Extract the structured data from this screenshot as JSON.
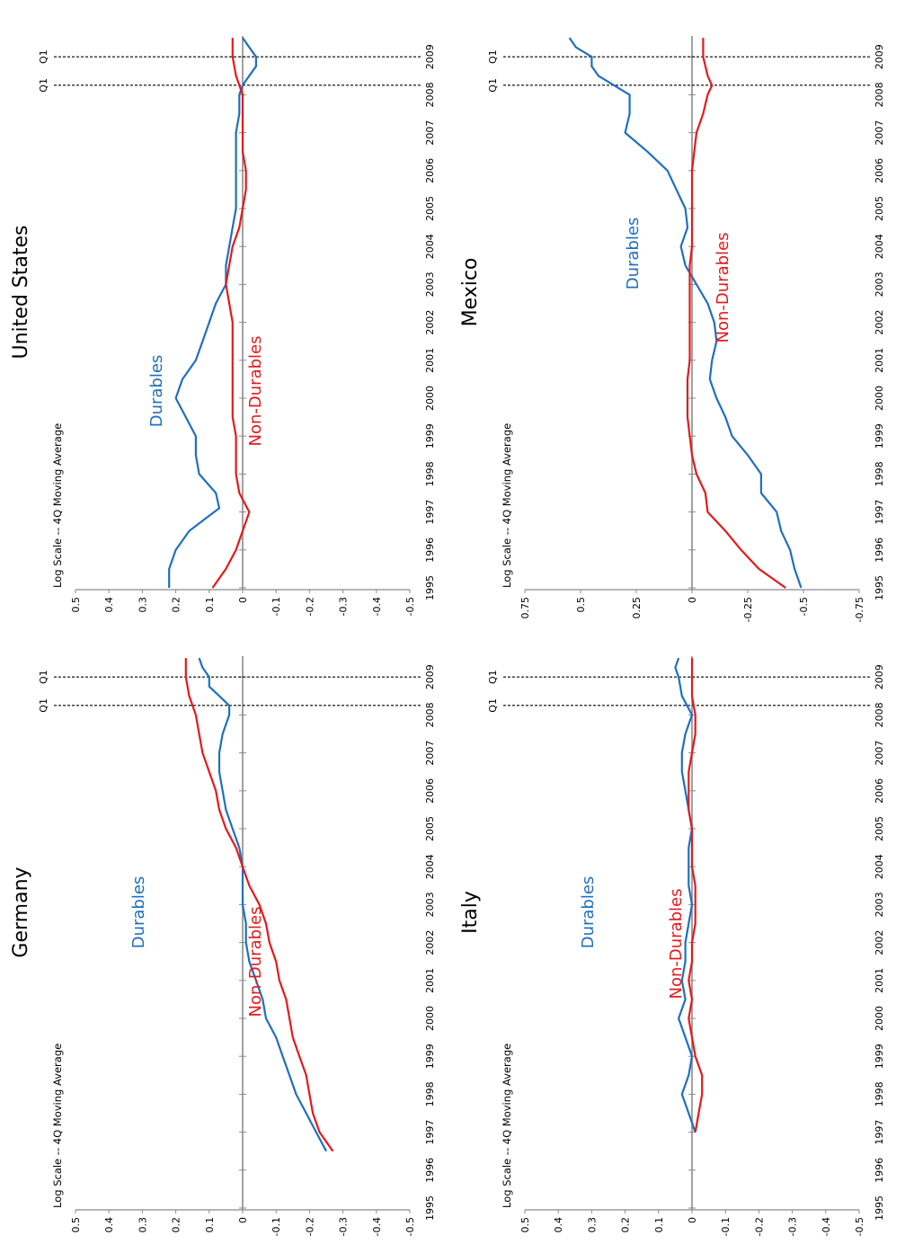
{
  "colors": {
    "durables": "#1f6fbf",
    "non_durables": "#e31a1c",
    "axis": "#8a8a8a",
    "dash": "#000000",
    "text": "#000000"
  },
  "chart_data": [
    {
      "type": "line",
      "title": "United States",
      "scale_note": "Log Scale  -- 4Q Moving Average",
      "ylim": [
        -0.5,
        0.5
      ],
      "y_ticks": [
        0.5,
        0.4,
        0.3,
        0.2,
        0.1,
        0,
        -0.1,
        -0.2,
        -0.3,
        -0.4,
        -0.5
      ],
      "y_tick_labels": [
        "0.5",
        "0.4",
        "0.3",
        "0.2",
        "0.1",
        "0",
        "-0.1",
        "-0.2",
        "-0.3",
        "-0.4",
        "-0.5"
      ],
      "x_ticks": [
        "1995",
        "1996",
        "1997",
        "1998",
        "1999",
        "2000",
        "2001",
        "2002",
        "2003",
        "2004",
        "2005",
        "2006",
        "2007",
        "2008",
        "2009"
      ],
      "markers": [
        {
          "label": "Q1",
          "x": 2008.25
        },
        {
          "label": "Q1",
          "x": 2009.0
        }
      ],
      "series": [
        {
          "name": "Durables",
          "x": [
            1995.0,
            1995.5,
            1996.0,
            1996.5,
            1996.9,
            1997.1,
            1997.5,
            1998.0,
            1998.5,
            1999.0,
            1999.5,
            2000.0,
            2000.5,
            2001.0,
            2001.5,
            2002.0,
            2002.5,
            2003.0,
            2003.5,
            2004.0,
            2004.5,
            2005.0,
            2005.5,
            2006.0,
            2006.5,
            2007.0,
            2007.5,
            2008.0,
            2008.25,
            2008.5,
            2008.75,
            2009.0,
            2009.25,
            2009.5
          ],
          "y": [
            0.22,
            0.22,
            0.2,
            0.16,
            0.1,
            0.07,
            0.08,
            0.13,
            0.14,
            0.14,
            0.17,
            0.2,
            0.18,
            0.14,
            0.12,
            0.1,
            0.08,
            0.05,
            0.05,
            0.04,
            0.03,
            0.02,
            0.02,
            0.02,
            0.02,
            0.02,
            0.01,
            0.01,
            0.0,
            -0.02,
            -0.04,
            -0.04,
            -0.02,
            0.0
          ]
        },
        {
          "name": "Non-Durables",
          "x": [
            1995.0,
            1995.5,
            1996.0,
            1996.5,
            1997.0,
            1997.5,
            1998.0,
            1998.5,
            1999.0,
            1999.5,
            2000.0,
            2000.5,
            2001.0,
            2001.5,
            2002.0,
            2002.5,
            2003.0,
            2003.5,
            2004.0,
            2004.5,
            2005.0,
            2005.5,
            2006.0,
            2006.5,
            2007.0,
            2007.5,
            2008.0,
            2008.5,
            2009.0,
            2009.5
          ],
          "y": [
            0.09,
            0.05,
            0.02,
            0.0,
            -0.02,
            0.01,
            0.02,
            0.02,
            0.02,
            0.03,
            0.03,
            0.03,
            0.03,
            0.03,
            0.03,
            0.04,
            0.05,
            0.04,
            0.03,
            0.01,
            0.0,
            -0.01,
            -0.01,
            0.0,
            0.0,
            0.0,
            0.0,
            0.02,
            0.03,
            0.03
          ]
        }
      ]
    },
    {
      "type": "line",
      "title": "Mexico",
      "scale_note": "Log Scale  -- 4Q Moving Average",
      "ylim": [
        -0.75,
        0.75
      ],
      "y_ticks": [
        0.75,
        0.5,
        0.25,
        0,
        -0.25,
        -0.5,
        -0.75
      ],
      "y_tick_labels": [
        "0.75",
        "0.5",
        "0.25",
        "0",
        "-0.25",
        "-0.5",
        "-0.75"
      ],
      "x_ticks": [
        "1995",
        "1996",
        "1997",
        "1998",
        "1999",
        "2000",
        "2001",
        "2002",
        "2003",
        "2004",
        "2005",
        "2006",
        "2007",
        "2008",
        "2009"
      ],
      "markers": [
        {
          "label": "Q1",
          "x": 2008.25
        },
        {
          "label": "Q1",
          "x": 2009.0
        }
      ],
      "series": [
        {
          "name": "Durables",
          "x": [
            1995.0,
            1995.5,
            1996.0,
            1996.5,
            1997.0,
            1997.5,
            1998.0,
            1998.5,
            1999.0,
            1999.5,
            2000.0,
            2000.5,
            2001.0,
            2001.5,
            2002.0,
            2002.5,
            2003.0,
            2003.5,
            2004.0,
            2004.5,
            2005.0,
            2005.5,
            2006.0,
            2006.5,
            2007.0,
            2007.5,
            2008.0,
            2008.25,
            2008.5,
            2008.75,
            2009.0,
            2009.25,
            2009.5
          ],
          "y": [
            -0.49,
            -0.46,
            -0.44,
            -0.4,
            -0.38,
            -0.31,
            -0.31,
            -0.25,
            -0.18,
            -0.15,
            -0.11,
            -0.08,
            -0.09,
            -0.11,
            -0.1,
            -0.07,
            -0.02,
            0.03,
            0.05,
            0.02,
            0.03,
            0.07,
            0.11,
            0.2,
            0.3,
            0.28,
            0.28,
            0.35,
            0.42,
            0.45,
            0.45,
            0.52,
            0.55
          ]
        },
        {
          "name": "Non-Durables",
          "x": [
            1995.0,
            1995.5,
            1996.0,
            1996.5,
            1997.0,
            1997.5,
            1998.0,
            1998.5,
            1999.0,
            1999.5,
            2000.0,
            2000.5,
            2001.0,
            2001.5,
            2002.0,
            2002.5,
            2003.0,
            2003.5,
            2004.0,
            2004.5,
            2005.0,
            2005.5,
            2006.0,
            2006.5,
            2007.0,
            2007.5,
            2008.0,
            2008.25,
            2008.5,
            2009.0,
            2009.5
          ],
          "y": [
            -0.42,
            -0.3,
            -0.22,
            -0.15,
            -0.07,
            -0.06,
            -0.02,
            0.0,
            0.01,
            0.02,
            0.02,
            0.02,
            0.01,
            0.01,
            0.01,
            0.01,
            0.01,
            0.01,
            0.0,
            0.0,
            0.0,
            0.0,
            0.0,
            -0.01,
            -0.02,
            -0.05,
            -0.07,
            -0.09,
            -0.07,
            -0.05,
            -0.05
          ]
        }
      ]
    },
    {
      "type": "line",
      "title": "Germany",
      "scale_note": "Log Scale  -- 4Q Moving Average",
      "ylim": [
        -0.5,
        0.5
      ],
      "y_ticks": [
        0.5,
        0.4,
        0.3,
        0.2,
        0.1,
        0,
        -0.1,
        -0.2,
        -0.3,
        -0.4,
        -0.5
      ],
      "y_tick_labels": [
        "0.5",
        "0.4",
        "0.3",
        "0.2",
        "0.1",
        "0",
        "-0.1",
        "-0.2",
        "-0.3",
        "-0.4",
        "-0.5"
      ],
      "x_ticks": [
        "1995",
        "1996",
        "1997",
        "1998",
        "1999",
        "2000",
        "2001",
        "2002",
        "2003",
        "2004",
        "2005",
        "2006",
        "2007",
        "2008",
        "2009"
      ],
      "markers": [
        {
          "label": "Q1",
          "x": 2008.25
        },
        {
          "label": "Q1",
          "x": 2009.0
        }
      ],
      "series": [
        {
          "name": "Durables",
          "x": [
            1996.5,
            1997.0,
            1997.5,
            1998.0,
            1998.5,
            1999.0,
            1999.5,
            2000.0,
            2000.5,
            2001.0,
            2001.5,
            2002.0,
            2002.5,
            2003.0,
            2003.5,
            2004.0,
            2004.5,
            2005.0,
            2005.5,
            2006.0,
            2006.5,
            2007.0,
            2007.5,
            2008.0,
            2008.25,
            2008.5,
            2008.75,
            2009.0,
            2009.25,
            2009.5
          ],
          "y": [
            -0.25,
            -0.22,
            -0.19,
            -0.16,
            -0.14,
            -0.12,
            -0.1,
            -0.07,
            -0.06,
            -0.04,
            -0.02,
            -0.01,
            -0.01,
            0.0,
            0.0,
            0.0,
            0.01,
            0.03,
            0.05,
            0.06,
            0.07,
            0.07,
            0.06,
            0.04,
            0.04,
            0.07,
            0.1,
            0.1,
            0.12,
            0.13
          ]
        },
        {
          "name": "Non-Durables",
          "x": [
            1996.5,
            1997.0,
            1997.5,
            1998.0,
            1998.5,
            1999.0,
            1999.5,
            2000.0,
            2000.5,
            2001.0,
            2001.5,
            2002.0,
            2002.5,
            2003.0,
            2003.5,
            2004.0,
            2004.5,
            2005.0,
            2005.5,
            2006.0,
            2006.5,
            2007.0,
            2007.5,
            2008.0,
            2008.5,
            2009.0,
            2009.5
          ],
          "y": [
            -0.27,
            -0.23,
            -0.21,
            -0.2,
            -0.19,
            -0.17,
            -0.15,
            -0.14,
            -0.13,
            -0.11,
            -0.1,
            -0.08,
            -0.07,
            -0.05,
            -0.02,
            0.0,
            0.02,
            0.05,
            0.07,
            0.08,
            0.1,
            0.12,
            0.13,
            0.14,
            0.16,
            0.17,
            0.17
          ]
        }
      ]
    },
    {
      "type": "line",
      "title": "Italy",
      "scale_note": "Log Scale  -- 4Q Moving Average",
      "ylim": [
        -0.5,
        0.5
      ],
      "y_ticks": [
        0.5,
        0.4,
        0.3,
        0.2,
        0.1,
        0,
        -0.1,
        -0.2,
        -0.3,
        -0.4,
        -0.5
      ],
      "y_tick_labels": [
        "0.5",
        "0.4",
        "0.3",
        "0.2",
        "0.1",
        "0",
        "-0.1",
        "-0.2",
        "-0.3",
        "-0.4",
        "-0.5"
      ],
      "x_ticks": [
        "1995",
        "1996",
        "1997",
        "1998",
        "1999",
        "2000",
        "2001",
        "2002",
        "2003",
        "2004",
        "2005",
        "2006",
        "2007",
        "2008",
        "2009"
      ],
      "markers": [
        {
          "label": "Q1",
          "x": 2008.25
        },
        {
          "label": "Q1",
          "x": 2009.0
        }
      ],
      "series": [
        {
          "name": "Durables",
          "x": [
            1997.0,
            1997.5,
            1998.0,
            1998.5,
            1999.0,
            1999.5,
            2000.0,
            2000.5,
            2001.0,
            2001.5,
            2002.0,
            2002.5,
            2003.0,
            2003.5,
            2004.0,
            2004.5,
            2005.0,
            2005.5,
            2006.0,
            2006.5,
            2007.0,
            2007.5,
            2008.0,
            2008.5,
            2009.0,
            2009.25,
            2009.5
          ],
          "y": [
            -0.01,
            0.01,
            0.03,
            0.01,
            0.0,
            0.02,
            0.04,
            0.02,
            0.03,
            0.02,
            0.02,
            0.01,
            0.0,
            0.01,
            0.01,
            0.01,
            0.0,
            0.01,
            0.02,
            0.03,
            0.03,
            0.02,
            0.0,
            0.03,
            0.04,
            0.05,
            0.04
          ]
        },
        {
          "name": "Non-Durables",
          "x": [
            1997.0,
            1997.5,
            1998.0,
            1998.5,
            1999.0,
            1999.5,
            2000.0,
            2000.5,
            2001.0,
            2001.5,
            2002.0,
            2002.5,
            2003.0,
            2003.5,
            2004.0,
            2004.5,
            2005.0,
            2005.5,
            2006.0,
            2006.5,
            2007.0,
            2007.5,
            2008.0,
            2008.5,
            2009.0,
            2009.5
          ],
          "y": [
            -0.01,
            -0.02,
            -0.03,
            -0.03,
            -0.01,
            0.0,
            0.01,
            0.0,
            0.01,
            0.0,
            0.0,
            -0.01,
            -0.01,
            -0.01,
            0.0,
            0.0,
            0.0,
            0.01,
            0.01,
            0.01,
            0.0,
            -0.01,
            -0.01,
            0.0,
            0.0,
            0.0
          ]
        }
      ]
    }
  ],
  "annotations": [
    {
      "text": "Durables",
      "color": "durables"
    },
    {
      "text": "Non-Durables",
      "color": "non_durables"
    },
    {
      "text": "Durables",
      "color": "durables"
    },
    {
      "text": "Non-Durables",
      "color": "non_durables"
    },
    {
      "text": "Durables",
      "color": "durables"
    },
    {
      "text": "Non-Durables",
      "color": "non_durables"
    },
    {
      "text": "Durables",
      "color": "durables"
    },
    {
      "text": "Non-Durables",
      "color": "non_durables"
    }
  ]
}
